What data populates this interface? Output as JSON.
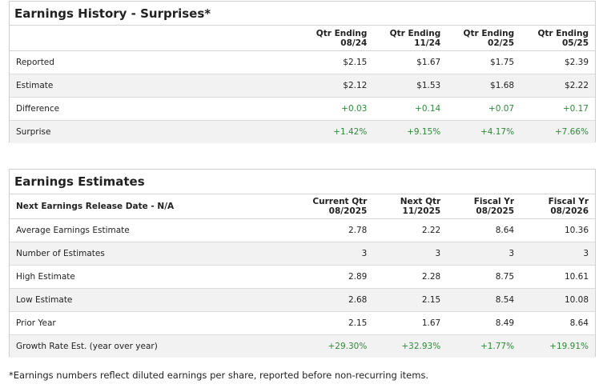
{
  "surprises": {
    "title": "Earnings History - Surprises*",
    "columns": [
      {
        "line1": "Qtr Ending",
        "line2": "08/24"
      },
      {
        "line1": "Qtr Ending",
        "line2": "11/24"
      },
      {
        "line1": "Qtr Ending",
        "line2": "02/25"
      },
      {
        "line1": "Qtr Ending",
        "line2": "05/25"
      }
    ],
    "rows": [
      {
        "label": "Reported",
        "values": [
          "$2.15",
          "$1.67",
          "$1.75",
          "$2.39"
        ]
      },
      {
        "label": "Estimate",
        "values": [
          "$2.12",
          "$1.53",
          "$1.68",
          "$2.22"
        ]
      },
      {
        "label": "Difference",
        "values": [
          "+0.03",
          "+0.14",
          "+0.07",
          "+0.17"
        ]
      },
      {
        "label": "Surprise",
        "values": [
          "+1.42%",
          "+9.15%",
          "+4.17%",
          "+7.66%"
        ]
      }
    ]
  },
  "estimates": {
    "title": "Earnings Estimates",
    "header_label": "Next Earnings Release Date - N/A",
    "columns": [
      {
        "line1": "Current Qtr",
        "line2": "08/2025"
      },
      {
        "line1": "Next Qtr",
        "line2": "11/2025"
      },
      {
        "line1": "Fiscal Yr",
        "line2": "08/2025"
      },
      {
        "line1": "Fiscal Yr",
        "line2": "08/2026"
      }
    ],
    "rows": [
      {
        "label": "Average Earnings Estimate",
        "values": [
          "2.78",
          "2.22",
          "8.64",
          "10.36"
        ]
      },
      {
        "label": "Number of Estimates",
        "values": [
          "3",
          "3",
          "3",
          "3"
        ]
      },
      {
        "label": "High Estimate",
        "values": [
          "2.89",
          "2.28",
          "8.75",
          "10.61"
        ]
      },
      {
        "label": "Low Estimate",
        "values": [
          "2.68",
          "2.15",
          "8.54",
          "10.08"
        ]
      },
      {
        "label": "Prior Year",
        "values": [
          "2.15",
          "1.67",
          "8.49",
          "8.64"
        ]
      },
      {
        "label": "Growth Rate Est. (year over year)",
        "values": [
          "+29.30%",
          "+32.93%",
          "+1.77%",
          "+19.91%"
        ]
      }
    ]
  },
  "footnote": "*Earnings numbers reflect diluted earnings per share, reported before non-recurring items.",
  "colors": {
    "positive": "#2e8b3a",
    "alt_row": "#f2f2f2",
    "border": "#cfcfcf"
  }
}
